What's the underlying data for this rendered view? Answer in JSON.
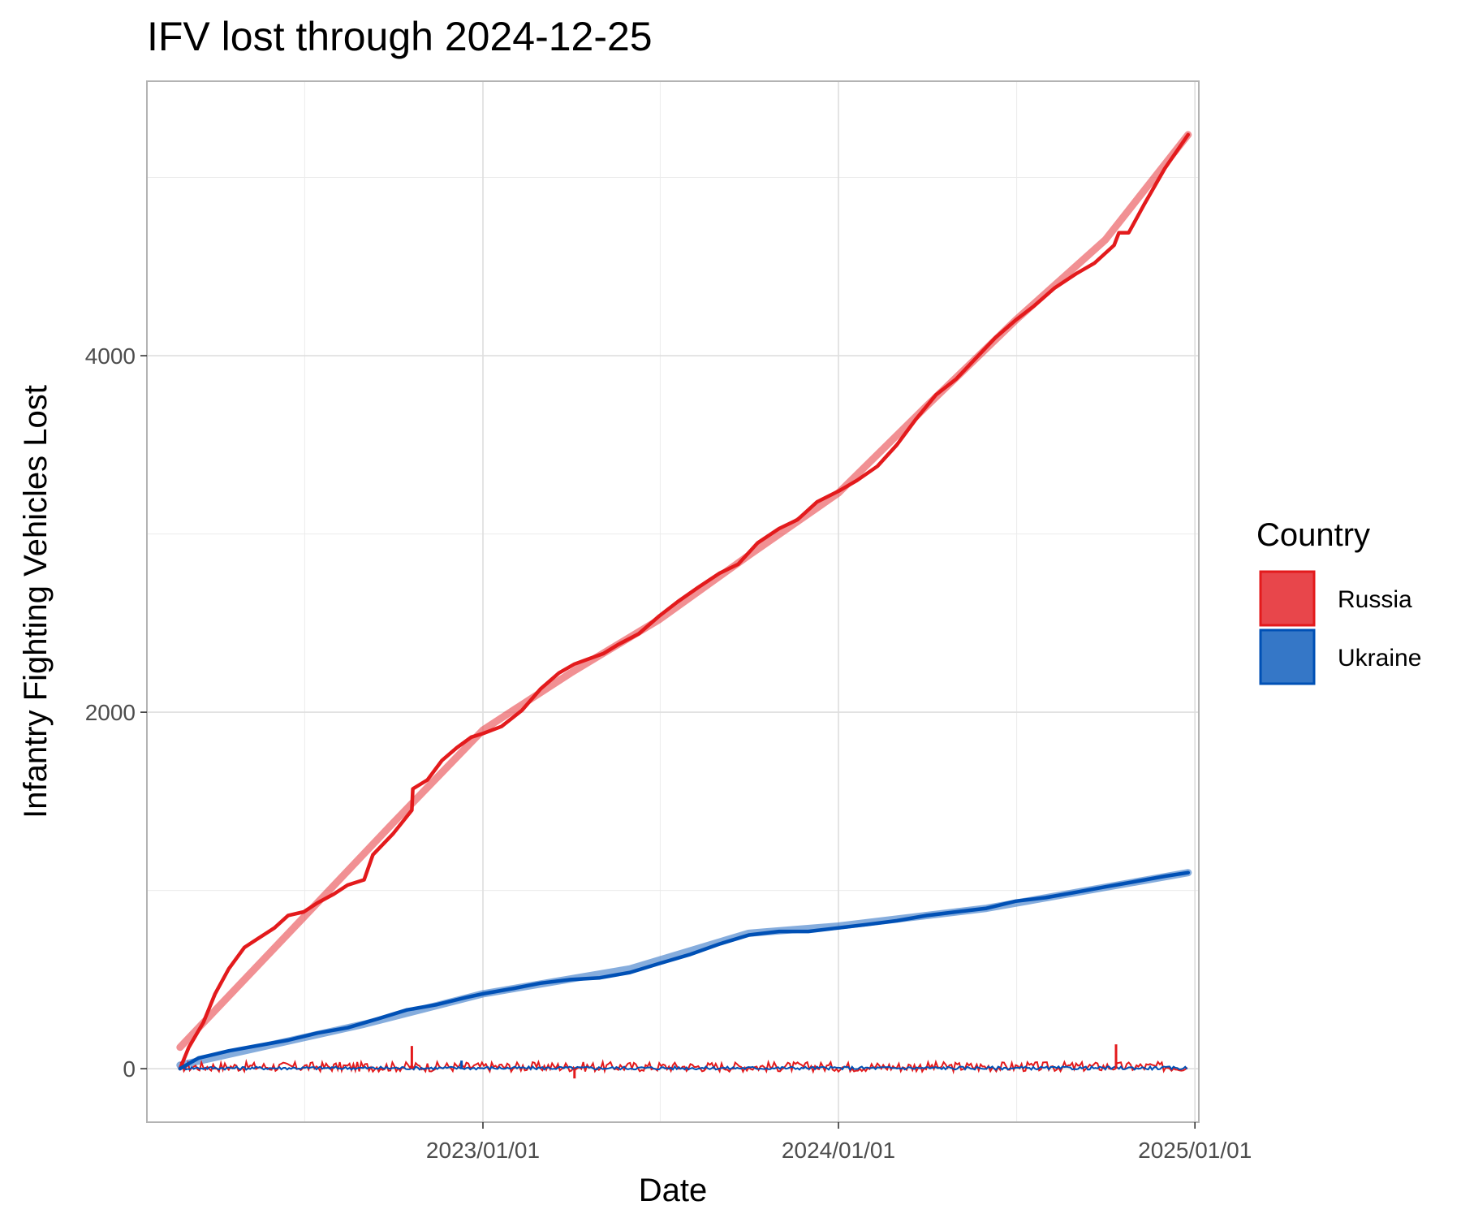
{
  "chart_data": {
    "type": "line",
    "title": "IFV lost through 2024-12-25",
    "xlabel": "Date",
    "ylabel": "Infantry Fighting Vehicles Lost",
    "x_ticks": [
      "2023/01/01",
      "2024/01/01",
      "2025/01/01"
    ],
    "y_ticks": [
      0,
      2000,
      4000
    ],
    "xlim": [
      "2022-01-21",
      "2025-01-05"
    ],
    "ylim": [
      -300,
      5540
    ],
    "grid": true,
    "legend": {
      "title": "Country",
      "placement": "right",
      "entries": [
        "Russia",
        "Ukraine"
      ]
    },
    "series": [
      {
        "name": "Russia",
        "color": "#e31a1c",
        "fill": "#e8464b",
        "cumulative": {
          "x": [
            "2022-02-24",
            "2022-03-05",
            "2022-03-20",
            "2022-04-01",
            "2022-04-15",
            "2022-05-01",
            "2022-05-15",
            "2022-06-01",
            "2022-06-15",
            "2022-07-01",
            "2022-07-15",
            "2022-08-01",
            "2022-08-15",
            "2022-09-01",
            "2022-09-10",
            "2022-10-01",
            "2022-10-20",
            "2022-10-21",
            "2022-11-05",
            "2022-11-20",
            "2022-12-05",
            "2022-12-20",
            "2023-01-01",
            "2023-01-20",
            "2023-02-10",
            "2023-03-01",
            "2023-03-20",
            "2023-04-05",
            "2023-04-20",
            "2023-05-05",
            "2023-05-20",
            "2023-06-10",
            "2023-07-01",
            "2023-07-20",
            "2023-08-10",
            "2023-09-01",
            "2023-09-20",
            "2023-10-10",
            "2023-11-01",
            "2023-11-20",
            "2023-12-10",
            "2024-01-01",
            "2024-01-20",
            "2024-02-10",
            "2024-03-01",
            "2024-03-20",
            "2024-04-10",
            "2024-05-01",
            "2024-05-20",
            "2024-06-10",
            "2024-07-01",
            "2024-07-20",
            "2024-08-10",
            "2024-09-01",
            "2024-09-20",
            "2024-10-10",
            "2024-10-15",
            "2024-10-25",
            "2024-11-10",
            "2024-12-01",
            "2024-12-25"
          ],
          "y": [
            0,
            120,
            260,
            420,
            560,
            680,
            730,
            790,
            860,
            880,
            930,
            980,
            1030,
            1060,
            1200,
            1320,
            1450,
            1570,
            1620,
            1730,
            1800,
            1860,
            1880,
            1920,
            2010,
            2130,
            2220,
            2270,
            2300,
            2330,
            2380,
            2440,
            2540,
            2620,
            2700,
            2780,
            2830,
            2950,
            3030,
            3080,
            3180,
            3240,
            3300,
            3380,
            3500,
            3640,
            3780,
            3870,
            3980,
            4100,
            4200,
            4280,
            4380,
            4460,
            4520,
            4620,
            4690,
            4690,
            4850,
            5050,
            5240
          ]
        },
        "trend": {
          "x": [
            "2022-02-24",
            "2022-07-01",
            "2022-10-01",
            "2023-01-01",
            "2023-04-01",
            "2023-07-01",
            "2023-10-01",
            "2024-01-01",
            "2024-04-01",
            "2024-07-01",
            "2024-10-01",
            "2024-12-25"
          ],
          "y": [
            120,
            850,
            1380,
            1900,
            2220,
            2520,
            2880,
            3230,
            3720,
            4200,
            4650,
            5240
          ]
        }
      },
      {
        "name": "Ukraine",
        "color": "#0050b5",
        "fill": "#3577c7",
        "cumulative": {
          "x": [
            "2022-02-24",
            "2022-03-15",
            "2022-04-15",
            "2022-05-15",
            "2022-06-15",
            "2022-07-15",
            "2022-08-15",
            "2022-09-15",
            "2022-10-15",
            "2022-11-15",
            "2022-12-15",
            "2023-01-01",
            "2023-02-01",
            "2023-03-01",
            "2023-04-01",
            "2023-05-01",
            "2023-06-01",
            "2023-07-01",
            "2023-08-01",
            "2023-09-01",
            "2023-10-01",
            "2023-11-01",
            "2023-12-01",
            "2024-01-01",
            "2024-02-01",
            "2024-03-01",
            "2024-04-01",
            "2024-05-01",
            "2024-06-01",
            "2024-07-01",
            "2024-08-01",
            "2024-09-01",
            "2024-10-01",
            "2024-11-01",
            "2024-12-01",
            "2024-12-25"
          ],
          "y": [
            0,
            60,
            100,
            130,
            160,
            200,
            230,
            280,
            330,
            360,
            400,
            420,
            450,
            480,
            500,
            510,
            540,
            590,
            640,
            700,
            750,
            770,
            770,
            790,
            810,
            830,
            860,
            880,
            900,
            940,
            960,
            990,
            1020,
            1050,
            1080,
            1100
          ]
        },
        "trend": {
          "x": [
            "2022-02-24",
            "2022-09-01",
            "2023-01-01",
            "2023-06-01",
            "2023-10-01",
            "2024-01-01",
            "2024-06-01",
            "2024-12-25"
          ],
          "y": [
            20,
            250,
            420,
            560,
            760,
            800,
            900,
            1100
          ]
        }
      }
    ]
  }
}
